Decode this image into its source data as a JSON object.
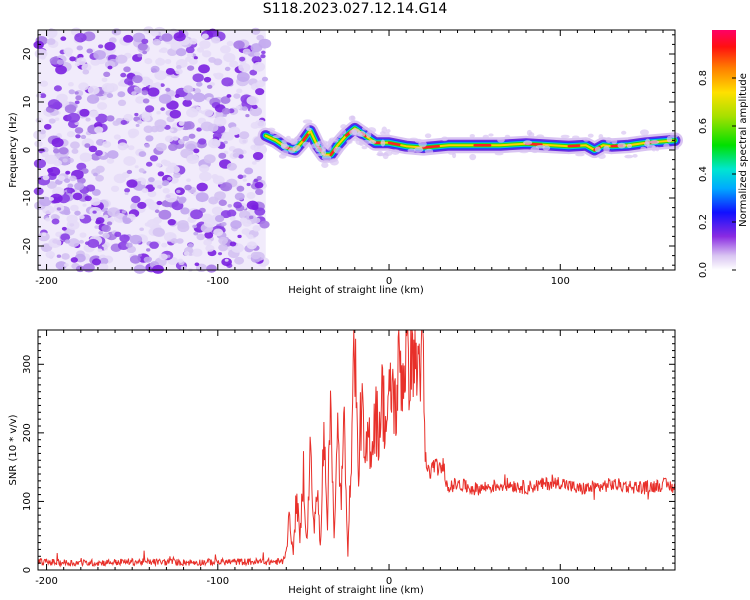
{
  "figure": {
    "title": "S118.2023.027.12.14.G14"
  },
  "chart_data": [
    {
      "type": "heatmap",
      "title": "S118.2023.027.12.14.G14",
      "xlabel": "Height of straight line (km)",
      "ylabel": "Frequency (Hz)",
      "xlim": [
        -205,
        167
      ],
      "ylim": [
        -25,
        25
      ],
      "xticks": [
        "-200",
        "-100",
        "0",
        "100"
      ],
      "yticks": [
        "-20",
        "-10",
        "0",
        "10",
        "20"
      ],
      "grid": false,
      "noise_region_x": [
        -205,
        -72
      ],
      "ridge": {
        "x": [
          -72,
          -66,
          -60,
          -55,
          -50,
          -46,
          -42,
          -38,
          -34,
          -30,
          -25,
          -20,
          -16,
          -12,
          -8,
          -4,
          0,
          10,
          20,
          35,
          50,
          65,
          80,
          95,
          105,
          115,
          120,
          125,
          130,
          140,
          150,
          160,
          167
        ],
        "freq": [
          3,
          2,
          0.5,
          0,
          2,
          4,
          1,
          -1,
          -1,
          1,
          3,
          4.5,
          3.5,
          2.5,
          1.5,
          1.5,
          1.5,
          0.8,
          0.5,
          1,
          1,
          1,
          1.3,
          1,
          0.8,
          1,
          0,
          1,
          0.8,
          1,
          1.5,
          1.8,
          2
        ]
      },
      "colorbar": {
        "label": "Normalized spectral amplitude",
        "ticks": [
          "0.0",
          "0.2",
          "0.4",
          "0.6",
          "0.8"
        ],
        "range": [
          0,
          1
        ]
      }
    },
    {
      "type": "line",
      "xlabel": "Height of straight line (km)",
      "ylabel": "SNR (10 * v/v)",
      "xlim": [
        -205,
        167
      ],
      "ylim": [
        0,
        350
      ],
      "xticks": [
        "-200",
        "-100",
        "0",
        "100"
      ],
      "yticks": [
        "0",
        "100",
        "200",
        "300"
      ],
      "grid": false,
      "color": "#e8302a",
      "series": [
        {
          "x": [
            -205,
            -180,
            -150,
            -120,
            -90,
            -62,
            -60,
            -58,
            -56,
            -54,
            -52,
            -50,
            -48,
            -46,
            -44,
            -42,
            -40,
            -38,
            -36,
            -34,
            -32,
            -30,
            -28,
            -26,
            -24,
            -22,
            -20,
            -18,
            -16,
            -14,
            -12,
            -10,
            -8,
            -6,
            -4,
            -2,
            0,
            2,
            4,
            6,
            8,
            10,
            12,
            14,
            16,
            18,
            20,
            21,
            22,
            24,
            26,
            28,
            30,
            32,
            34,
            40,
            50,
            60,
            70,
            80,
            90,
            100,
            110,
            120,
            130,
            140,
            150,
            160,
            167
          ],
          "values": [
            12,
            10,
            12,
            11,
            12,
            12,
            30,
            80,
            20,
            110,
            40,
            150,
            30,
            180,
            60,
            120,
            25,
            230,
            70,
            260,
            40,
            200,
            100,
            220,
            20,
            180,
            350,
            130,
            250,
            140,
            200,
            180,
            230,
            200,
            260,
            210,
            240,
            270,
            230,
            310,
            280,
            320,
            300,
            330,
            290,
            310,
            320,
            145,
            150,
            140,
            155,
            150,
            145,
            155,
            120,
            125,
            118,
            122,
            125,
            120,
            125,
            128,
            118,
            120,
            125,
            122,
            120,
            125,
            120
          ]
        }
      ]
    }
  ]
}
